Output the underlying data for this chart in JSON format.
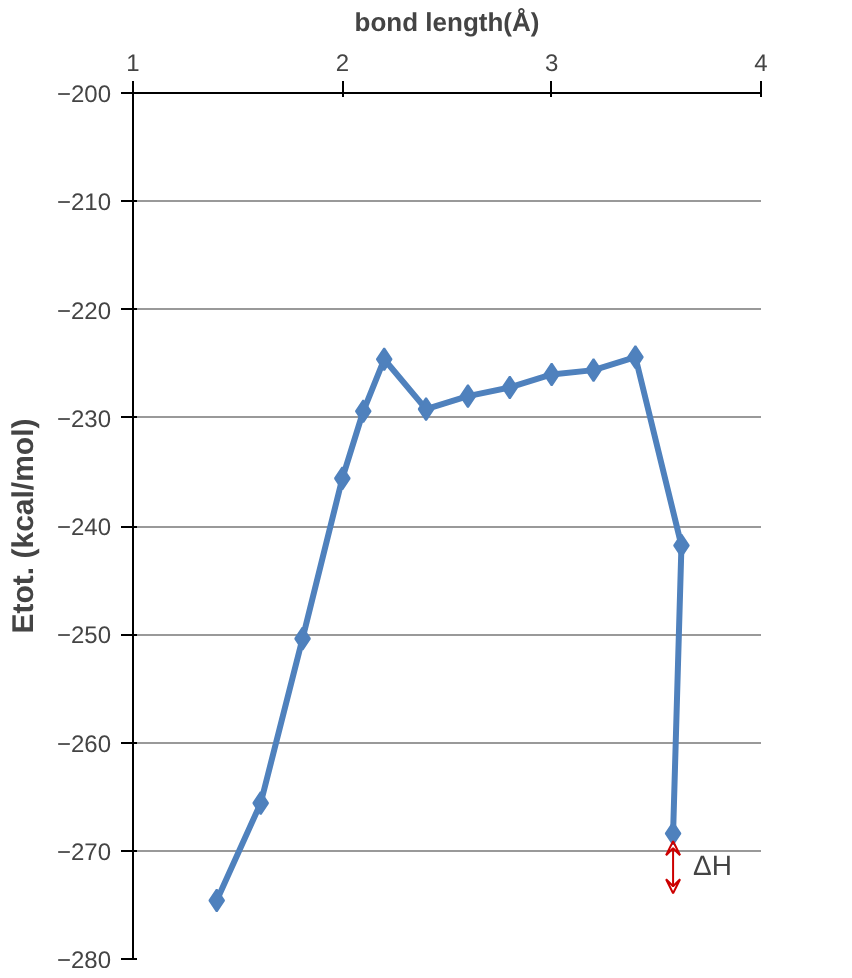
{
  "chart_data": {
    "type": "line",
    "xlabel": "bond length(Å)",
    "ylabel": "Etot. (kcal/mol)",
    "x": [
      1.4,
      1.61,
      1.81,
      2.0,
      2.1,
      2.2,
      2.4,
      2.6,
      2.8,
      3.0,
      3.2,
      3.4,
      3.62,
      3.58
    ],
    "series": [
      {
        "color": "#4f81bd",
        "values": [
          -274.6,
          -265.6,
          -250.4,
          -235.6,
          -229.4,
          -224.6,
          -229.2,
          -228.0,
          -227.2,
          -226.0,
          -225.6,
          -224.4,
          -241.8,
          -268.4
        ]
      }
    ],
    "xlim": [
      1,
      4
    ],
    "xticks": [
      1,
      2,
      3,
      4
    ],
    "ylim": [
      -280,
      -200
    ],
    "yticks": [
      -280,
      -270,
      -260,
      -250,
      -240,
      -230,
      -220,
      -210,
      -200
    ],
    "grid": "y",
    "marker": "diamond",
    "line_style": "solid",
    "annotations": [
      "ΔH"
    ]
  }
}
